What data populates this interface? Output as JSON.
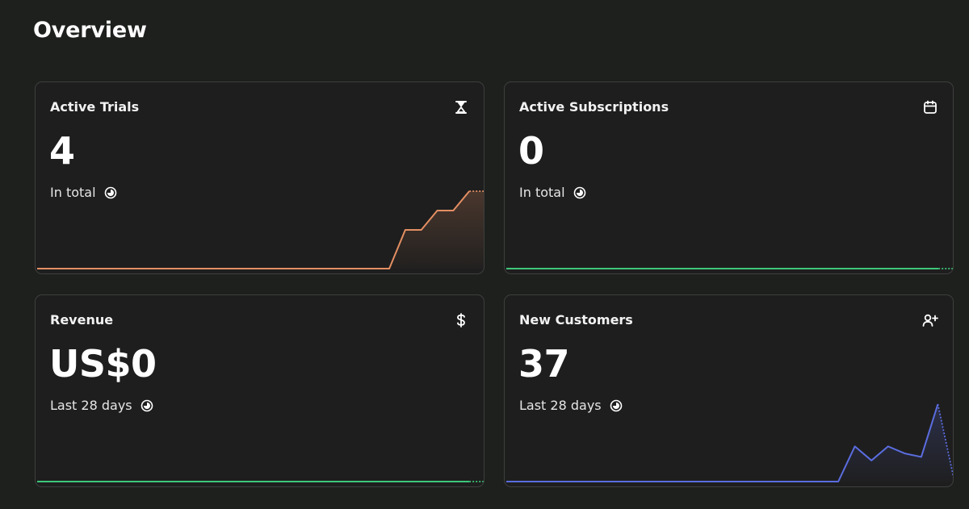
{
  "page": {
    "title": "Overview"
  },
  "cards": {
    "trials": {
      "title": "Active Trials",
      "value": "4",
      "subtitle": "In total",
      "icon": "hourglass-icon",
      "color": "#e48f63"
    },
    "subscriptions": {
      "title": "Active Subscriptions",
      "value": "0",
      "subtitle": "In total",
      "icon": "calendar-icon",
      "color": "#3ec77a"
    },
    "revenue": {
      "title": "Revenue",
      "value": "US$0",
      "subtitle": "Last 28 days",
      "icon": "dollar-icon",
      "color": "#3ec77a"
    },
    "customers": {
      "title": "New Customers",
      "value": "37",
      "subtitle": "Last 28 days",
      "icon": "user-plus-icon",
      "color": "#5b6de0"
    }
  },
  "chart_data": [
    {
      "type": "area",
      "name": "trials-sparkline",
      "values": [
        0,
        0,
        0,
        0,
        0,
        0,
        0,
        0,
        0,
        0,
        0,
        0,
        0,
        0,
        0,
        0,
        0,
        0,
        0,
        0,
        0,
        0,
        0,
        2,
        2,
        3,
        3,
        4,
        4
      ],
      "projected_last": true,
      "ylim": [
        0,
        4
      ],
      "color": "#e48f63"
    },
    {
      "type": "line",
      "name": "subscriptions-sparkline",
      "values": [
        0,
        0,
        0,
        0,
        0,
        0,
        0,
        0,
        0,
        0,
        0,
        0,
        0,
        0,
        0,
        0,
        0,
        0,
        0,
        0,
        0,
        0,
        0,
        0,
        0,
        0,
        0,
        0,
        0
      ],
      "projected_last": true,
      "ylim": [
        0,
        4
      ],
      "color": "#3ec77a"
    },
    {
      "type": "line",
      "name": "revenue-sparkline",
      "values": [
        0,
        0,
        0,
        0,
        0,
        0,
        0,
        0,
        0,
        0,
        0,
        0,
        0,
        0,
        0,
        0,
        0,
        0,
        0,
        0,
        0,
        0,
        0,
        0,
        0,
        0,
        0,
        0,
        0
      ],
      "projected_last": true,
      "ylim": [
        0,
        4
      ],
      "color": "#3ec77a"
    },
    {
      "type": "area",
      "name": "customers-sparkline",
      "values": [
        0,
        0,
        0,
        0,
        0,
        0,
        0,
        0,
        0,
        0,
        0,
        0,
        0,
        0,
        0,
        0,
        0,
        0,
        0,
        0,
        0,
        5,
        3,
        5,
        4,
        3.5,
        11,
        0
      ],
      "projected_last": true,
      "ylim": [
        0,
        11
      ],
      "color": "#5b6de0"
    }
  ]
}
